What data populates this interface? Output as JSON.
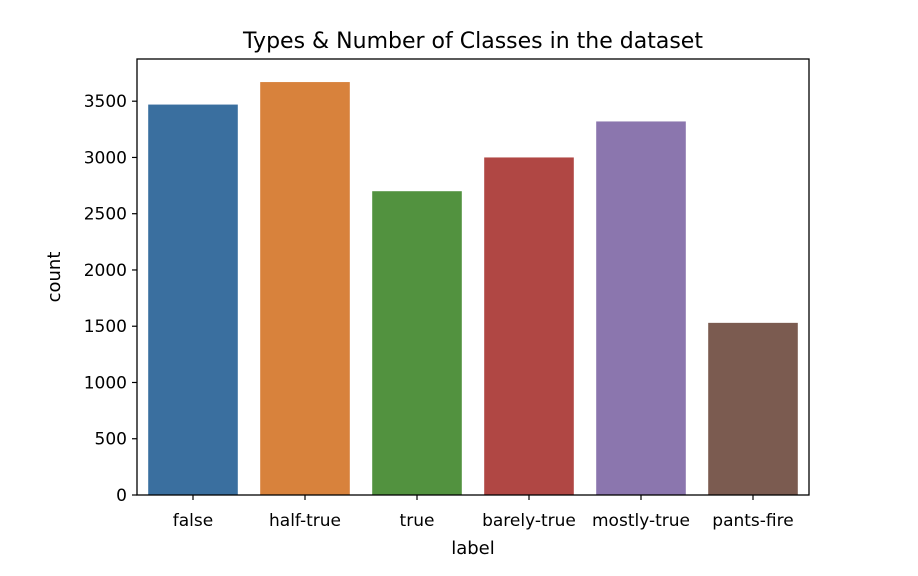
{
  "chart_data": {
    "type": "bar",
    "title": "Types & Number of Classes in the dataset",
    "xlabel": "label",
    "ylabel": "count",
    "categories": [
      "false",
      "half-true",
      "true",
      "barely-true",
      "mostly-true",
      "pants-fire"
    ],
    "values": [
      3470,
      3670,
      2700,
      3000,
      3320,
      1530
    ],
    "colors": [
      "#3a6f9f",
      "#d8823c",
      "#52923f",
      "#b04744",
      "#8b76ae",
      "#7b5b50"
    ],
    "ylim": [
      0,
      3875
    ],
    "yticks": [
      "0",
      "500",
      "1000",
      "1500",
      "2000",
      "2500",
      "3000",
      "3500"
    ],
    "grid": false,
    "legend": "none"
  }
}
